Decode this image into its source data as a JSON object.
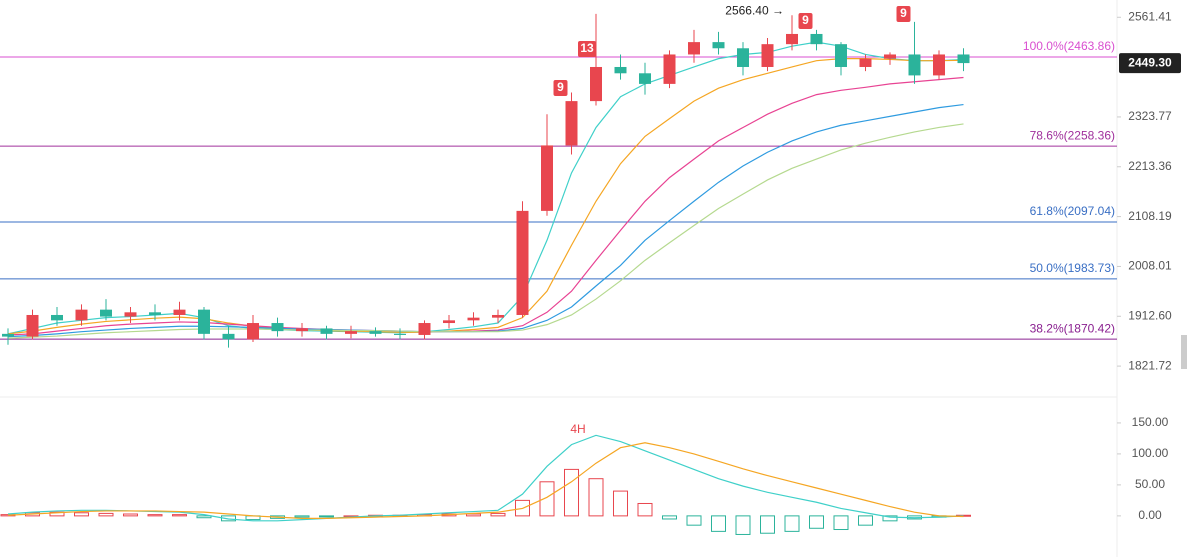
{
  "chart_data": {
    "type": "candlestick",
    "log_scale": true,
    "up_color": "#e8464e",
    "down_color": "#2bb39b",
    "ylim": [
      1771,
      2605
    ],
    "yticks": [
      {
        "value": 1821.72,
        "label": "1821.72"
      },
      {
        "value": 1912.6,
        "label": "1912.60"
      },
      {
        "value": 2008.01,
        "label": "2008.01"
      },
      {
        "value": 2108.19,
        "label": "2108.19"
      },
      {
        "value": 2213.36,
        "label": "2213.36"
      },
      {
        "value": 2323.77,
        "label": "2323.77"
      },
      {
        "value": 2561.41,
        "label": "2561.41"
      }
    ],
    "open": [
      1880,
      1875,
      1915,
      1905,
      1925,
      1912,
      1920,
      1915,
      1925,
      1880,
      1870,
      1900,
      1885,
      1890,
      1880,
      1885,
      1880,
      1878,
      1900,
      1905,
      1910,
      1915,
      2120,
      2260,
      2360,
      2440,
      2425,
      2400,
      2470,
      2500,
      2485,
      2440,
      2495,
      2520,
      2495,
      2440,
      2460,
      2470,
      2420,
      2470
    ],
    "high": [
      1890,
      1925,
      1930,
      1935,
      1945,
      1930,
      1935,
      1940,
      1930,
      1895,
      1915,
      1910,
      1900,
      1895,
      1895,
      1892,
      1890,
      1905,
      1915,
      1920,
      1925,
      2140,
      2330,
      2380,
      2570,
      2470,
      2450,
      2480,
      2530,
      2525,
      2500,
      2510,
      2566.4,
      2530,
      2500,
      2470,
      2475,
      2550,
      2480,
      2485
    ],
    "low": [
      1860,
      1870,
      1895,
      1895,
      1905,
      1900,
      1905,
      1905,
      1870,
      1855,
      1865,
      1875,
      1875,
      1870,
      1872,
      1875,
      1870,
      1870,
      1890,
      1895,
      1900,
      1910,
      2110,
      2240,
      2350,
      2410,
      2375,
      2390,
      2450,
      2470,
      2420,
      2430,
      2480,
      2480,
      2420,
      2430,
      2445,
      2400,
      2410,
      2430
    ],
    "close": [
      1875,
      1915,
      1905,
      1925,
      1912,
      1920,
      1915,
      1925,
      1880,
      1870,
      1900,
      1885,
      1890,
      1880,
      1885,
      1880,
      1878,
      1900,
      1905,
      1910,
      1915,
      2120,
      2260,
      2360,
      2440,
      2425,
      2400,
      2470,
      2500,
      2485,
      2440,
      2495,
      2520,
      2495,
      2440,
      2460,
      2470,
      2420,
      2470,
      2449.3
    ],
    "moving_averages": [
      {
        "color": "#3fd0c9",
        "values": [
          1880,
          1890,
          1900,
          1905,
          1910,
          1912,
          1915,
          1918,
          1910,
          1895,
          1890,
          1888,
          1886,
          1885,
          1884,
          1883,
          1882,
          1884,
          1888,
          1893,
          1900,
          1950,
          2060,
          2200,
          2300,
          2370,
          2400,
          2420,
          2440,
          2460,
          2470,
          2475,
          2490,
          2500,
          2490,
          2470,
          2460,
          2455,
          2455,
          2458
        ]
      },
      {
        "color": "#f5a623",
        "values": [
          1880,
          1885,
          1892,
          1898,
          1903,
          1906,
          1909,
          1911,
          1908,
          1900,
          1894,
          1890,
          1888,
          1886,
          1885,
          1884,
          1883,
          1883,
          1885,
          1888,
          1892,
          1910,
          1960,
          2050,
          2140,
          2220,
          2280,
          2320,
          2360,
          2390,
          2410,
          2425,
          2440,
          2455,
          2460,
          2460,
          2458,
          2455,
          2455,
          2456
        ]
      },
      {
        "color": "#e84393",
        "values": [
          1878,
          1880,
          1885,
          1890,
          1895,
          1898,
          1900,
          1902,
          1901,
          1898,
          1895,
          1892,
          1890,
          1888,
          1887,
          1886,
          1885,
          1884,
          1884,
          1885,
          1887,
          1895,
          1920,
          1960,
          2020,
          2080,
          2140,
          2190,
          2230,
          2270,
          2300,
          2330,
          2355,
          2375,
          2385,
          2392,
          2400,
          2405,
          2410,
          2415
        ]
      },
      {
        "color": "#2f9be0",
        "values": [
          1875,
          1877,
          1880,
          1884,
          1887,
          1890,
          1892,
          1894,
          1894,
          1893,
          1892,
          1890,
          1889,
          1888,
          1887,
          1886,
          1885,
          1884,
          1884,
          1884,
          1885,
          1890,
          1905,
          1930,
          1970,
          2010,
          2060,
          2100,
          2140,
          2180,
          2215,
          2245,
          2270,
          2290,
          2305,
          2315,
          2325,
          2335,
          2345,
          2352
        ]
      },
      {
        "color": "#b5d98f",
        "values": [
          1872,
          1874,
          1876,
          1879,
          1882,
          1884,
          1886,
          1888,
          1889,
          1889,
          1889,
          1888,
          1887,
          1887,
          1886,
          1886,
          1885,
          1884,
          1884,
          1884,
          1884,
          1887,
          1897,
          1915,
          1945,
          1980,
          2020,
          2055,
          2090,
          2125,
          2155,
          2185,
          2210,
          2230,
          2250,
          2265,
          2278,
          2290,
          2300,
          2308
        ]
      }
    ],
    "fib_levels": [
      {
        "value": 2463.86,
        "label": "100.0%(2463.86)",
        "color": "#d94fd0"
      },
      {
        "value": 2258.36,
        "label": "78.6%(2258.36)",
        "color": "#a0309c"
      },
      {
        "value": 2097.04,
        "label": "61.8%(2097.04)",
        "color": "#3a6fc4"
      },
      {
        "value": 1983.73,
        "label": "50.0%(1983.73)",
        "color": "#3a6fc4"
      },
      {
        "value": 1870.42,
        "label": "38.2%(1870.42)",
        "color": "#8a2090"
      }
    ],
    "last_price": {
      "value": 2449.3,
      "label": "2449.30"
    },
    "high_annotation": "2566.40 →",
    "markers": [
      "9",
      "13",
      "9",
      "9"
    ],
    "indicator": {
      "type": "macd",
      "title": "4H",
      "ylim": [
        -47,
        187
      ],
      "yticks": [
        {
          "value": 0,
          "label": "0.00"
        },
        {
          "value": 50,
          "label": "50.00"
        },
        {
          "value": 100,
          "label": "100.00"
        },
        {
          "value": 150,
          "label": "150.00"
        }
      ],
      "histogram": [
        2,
        5,
        6,
        5,
        4,
        3,
        2,
        2,
        -3,
        -8,
        -6,
        -4,
        -2,
        -1,
        0,
        1,
        1,
        2,
        3,
        3,
        4,
        25,
        55,
        75,
        60,
        40,
        20,
        -5,
        -15,
        -25,
        -30,
        -28,
        -25,
        -20,
        -22,
        -15,
        -8,
        -5,
        -2,
        1
      ],
      "dif": {
        "color": "#3fd0c9",
        "values": [
          3,
          6,
          8,
          9,
          9,
          8,
          7,
          6,
          2,
          -5,
          -8,
          -8,
          -6,
          -4,
          -2,
          0,
          1,
          3,
          5,
          7,
          9,
          35,
          80,
          115,
          130,
          120,
          105,
          90,
          75,
          60,
          48,
          38,
          30,
          22,
          12,
          5,
          -2,
          -3,
          -2,
          0
        ]
      },
      "dea": {
        "color": "#f5a623",
        "values": [
          1,
          3,
          5,
          7,
          8,
          8,
          8,
          7,
          6,
          3,
          0,
          -2,
          -4,
          -4,
          -3,
          -2,
          -1,
          0,
          2,
          4,
          6,
          12,
          30,
          55,
          85,
          110,
          118,
          110,
          100,
          88,
          76,
          65,
          55,
          45,
          35,
          25,
          15,
          6,
          0,
          -1
        ]
      }
    }
  }
}
